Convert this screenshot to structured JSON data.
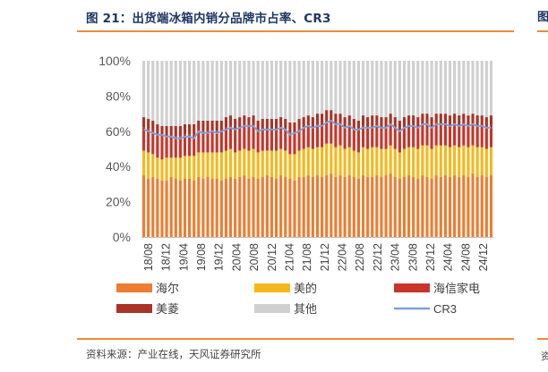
{
  "title": "图 21：出货端冰箱内销分品牌市占率、CR3",
  "source": "资料来源：产业在线，天风证券研究所",
  "edge_glyphs": {
    "title": "图",
    "source": "资"
  },
  "chart_data": {
    "type": "bar",
    "stacked": true,
    "title": "图 21：出货端冰箱内销分品牌市占率、CR3",
    "xlabel": "",
    "ylabel": "",
    "ylim": [
      0,
      100
    ],
    "yticks": [
      "0%",
      "20%",
      "40%",
      "60%",
      "80%",
      "100%"
    ],
    "xticklabels": [
      "18/08",
      "18/12",
      "19/04",
      "19/08",
      "19/12",
      "20/04",
      "20/08",
      "20/12",
      "21/04",
      "21/08",
      "21/12",
      "22/04",
      "22/08",
      "22/12",
      "23/04",
      "23/08",
      "23/12",
      "24/04",
      "24/08",
      "24/12"
    ],
    "categories_count": 77,
    "series": [
      {
        "name": "海尔",
        "color": "#ed7d31",
        "values": [
          35,
          33,
          34,
          33,
          32,
          32,
          34,
          33,
          32,
          33,
          33,
          32,
          34,
          33,
          34,
          33,
          33,
          32,
          33,
          34,
          33,
          34,
          35,
          33,
          34,
          33,
          34,
          35,
          34,
          33,
          35,
          34,
          33,
          32,
          34,
          34,
          35,
          34,
          35,
          34,
          35,
          36,
          34,
          35,
          34,
          35,
          34,
          33,
          35,
          34,
          34,
          35,
          34,
          35,
          36,
          34,
          33,
          34,
          35,
          34,
          33,
          35,
          34,
          33,
          35,
          34,
          35,
          34,
          35,
          34,
          35,
          34,
          36,
          34,
          35,
          34,
          35
        ]
      },
      {
        "name": "美的",
        "color": "#f5b81c",
        "values": [
          14,
          15,
          13,
          12,
          12,
          13,
          11,
          12,
          13,
          13,
          13,
          14,
          14,
          15,
          14,
          15,
          15,
          16,
          16,
          16,
          15,
          15,
          15,
          16,
          16,
          15,
          15,
          14,
          15,
          16,
          15,
          15,
          14,
          15,
          15,
          16,
          16,
          16,
          16,
          17,
          18,
          17,
          17,
          17,
          16,
          16,
          15,
          15,
          16,
          16,
          17,
          16,
          16,
          15,
          16,
          16,
          15,
          16,
          16,
          17,
          17,
          17,
          18,
          17,
          17,
          18,
          17,
          17,
          17,
          17,
          17,
          17,
          16,
          17,
          16,
          16,
          16
        ]
      },
      {
        "name": "海信家电",
        "color": "#c9352a",
        "values": [
          13,
          13,
          13,
          13,
          13,
          12,
          12,
          12,
          12,
          12,
          12,
          12,
          12,
          12,
          12,
          12,
          12,
          12,
          13,
          13,
          13,
          13,
          13,
          13,
          13,
          12,
          12,
          12,
          12,
          12,
          12,
          12,
          12,
          12,
          12,
          12,
          12,
          12,
          13,
          13,
          13,
          13,
          13,
          12,
          12,
          12,
          12,
          12,
          12,
          12,
          12,
          12,
          12,
          12,
          12,
          12,
          12,
          12,
          12,
          12,
          12,
          12,
          12,
          12,
          12,
          12,
          12,
          12,
          12,
          12,
          12,
          12,
          12,
          12,
          12,
          12,
          12
        ]
      },
      {
        "name": "美菱",
        "color": "#a83427",
        "values": [
          6,
          6,
          6,
          6,
          6,
          6,
          6,
          6,
          6,
          6,
          6,
          6,
          6,
          6,
          6,
          6,
          6,
          6,
          6,
          6,
          6,
          6,
          6,
          6,
          6,
          6,
          6,
          6,
          6,
          6,
          6,
          6,
          6,
          6,
          6,
          6,
          6,
          6,
          6,
          6,
          6,
          6,
          6,
          6,
          6,
          6,
          6,
          6,
          6,
          6,
          6,
          6,
          6,
          6,
          6,
          6,
          6,
          6,
          6,
          6,
          6,
          6,
          6,
          6,
          6,
          6,
          6,
          6,
          6,
          6,
          6,
          6,
          6,
          6,
          6,
          6,
          6
        ]
      },
      {
        "name": "其他",
        "color": "#d0d0d0",
        "values": [
          32,
          33,
          34,
          36,
          37,
          37,
          37,
          37,
          37,
          36,
          36,
          36,
          34,
          34,
          34,
          34,
          34,
          34,
          32,
          31,
          33,
          32,
          31,
          32,
          31,
          34,
          33,
          33,
          33,
          33,
          32,
          33,
          35,
          35,
          33,
          32,
          31,
          32,
          30,
          30,
          28,
          28,
          30,
          30,
          32,
          31,
          33,
          34,
          31,
          32,
          31,
          31,
          32,
          32,
          30,
          32,
          34,
          32,
          31,
          31,
          32,
          30,
          30,
          32,
          30,
          30,
          30,
          31,
          30,
          31,
          30,
          31,
          30,
          31,
          31,
          32,
          31
        ]
      },
      {
        "name": "CR3",
        "type": "line",
        "color": "#7ea1d8",
        "values": [
          61,
          60,
          59,
          58,
          58,
          57,
          57,
          56,
          56,
          57,
          57,
          56,
          60,
          59,
          59,
          60,
          59,
          60,
          61,
          62,
          61,
          62,
          63,
          63,
          63,
          60,
          61,
          61,
          61,
          61,
          62,
          61,
          58,
          59,
          60,
          62,
          63,
          62,
          63,
          63,
          65,
          66,
          64,
          64,
          62,
          63,
          61,
          61,
          62,
          62,
          62,
          63,
          62,
          62,
          64,
          62,
          60,
          62,
          63,
          63,
          62,
          64,
          64,
          62,
          64,
          64,
          64,
          63,
          64,
          63,
          64,
          63,
          64,
          63,
          63,
          62,
          62
        ]
      }
    ],
    "legend": {
      "position": "bottom",
      "labels": [
        "海尔",
        "美的",
        "海信家电",
        "美菱",
        "其他",
        "CR3"
      ]
    }
  }
}
